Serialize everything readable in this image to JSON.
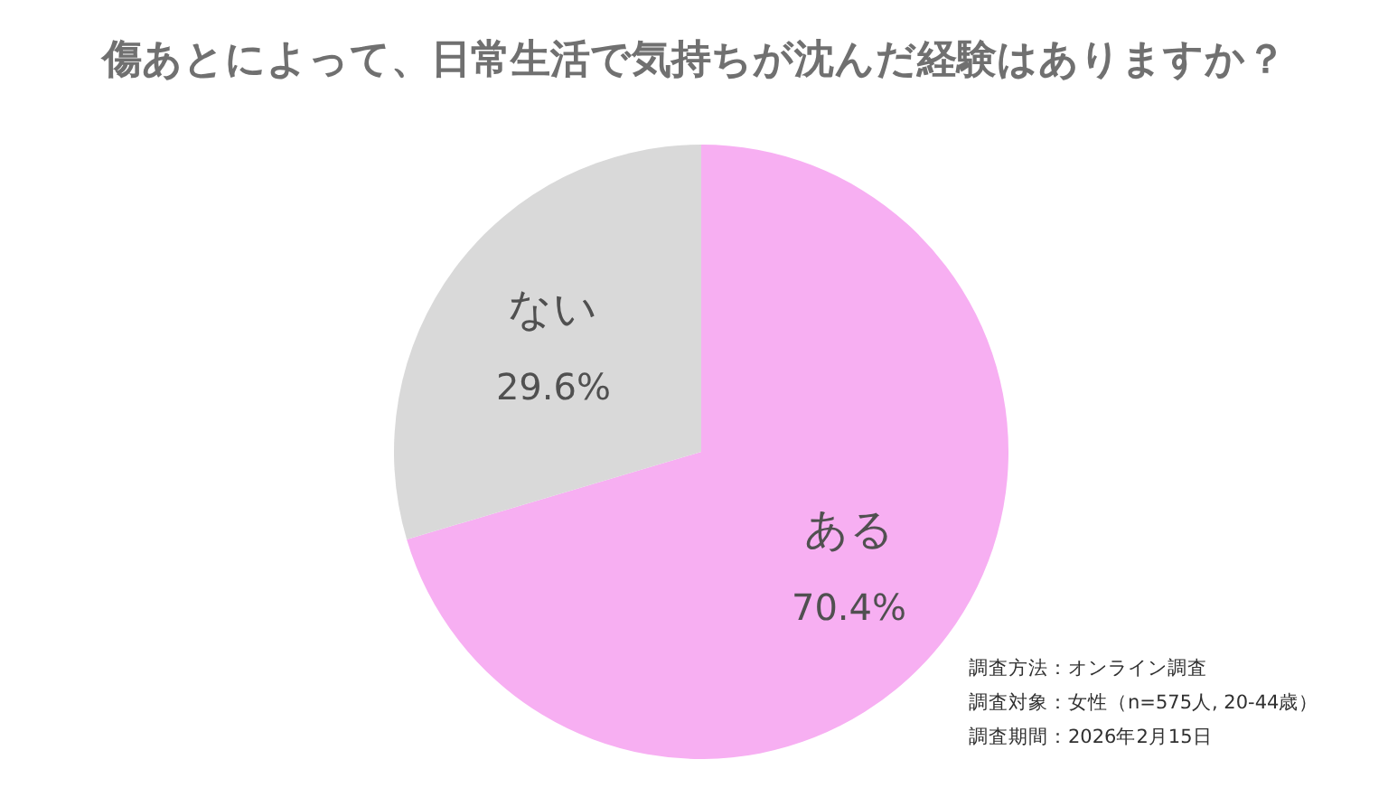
{
  "chart_data": {
    "type": "pie",
    "title": "傷あとによって、日常生活で気持ちが沈んだ経験はありますか？",
    "categories": [
      "ある",
      "ない"
    ],
    "values": [
      70.4,
      29.6
    ],
    "value_labels": [
      "70.4%",
      "29.6%"
    ],
    "colors": [
      "#f7aff2",
      "#d9d9d9"
    ],
    "legend": false,
    "annotations": [
      "調査方法：オンライン調査",
      "調査対象：女性（n=575人, 20-44歳）",
      "調査期間：2026年2月15日"
    ]
  }
}
